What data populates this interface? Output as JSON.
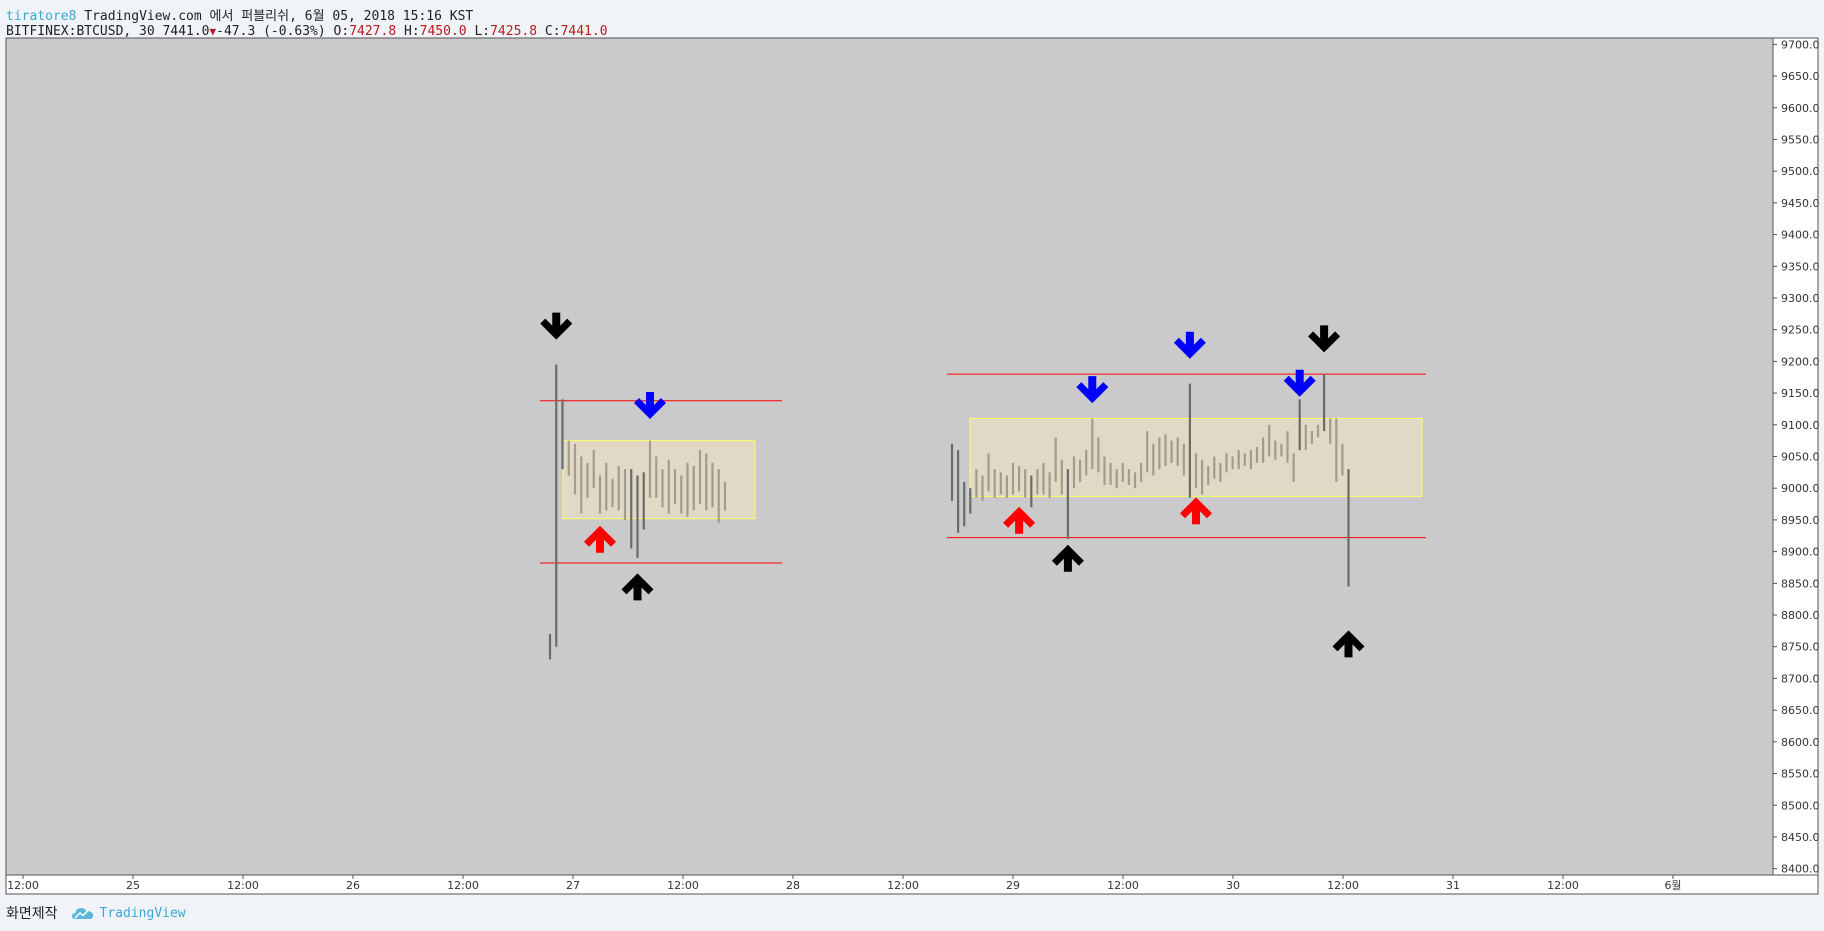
{
  "header": {
    "user": "tiratore8",
    "published": "TradingView.com 에서 퍼블리쉬, 6월 05, 2018 15:16 KST",
    "symbol": "BITFINEX:BTCUSD, 30",
    "last": "7441.0",
    "change_arrow": "▼",
    "change": "-47.3 (-0.63%)",
    "o_label": "O:",
    "o_val": "7427.8",
    "h_label": "H:",
    "h_val": "7450.0",
    "l_label": "L:",
    "l_val": "7425.8",
    "c_label": "C:",
    "c_val": "7441.0"
  },
  "footer": {
    "label": "화면제작",
    "brand": "TradingView",
    "brand_icon": "tradingview-cloud-icon"
  },
  "colors": {
    "plot_bg": "#cacaca",
    "bar_dark": "#6b6b6b",
    "bar_light": "#a49c8a",
    "zone_fill": "#e3dcc4",
    "zone_border": "#ffff66",
    "line_red": "#ff0000",
    "arrow_blue": "#0000ff",
    "arrow_red": "#ff0000",
    "arrow_black": "#000000"
  },
  "chart_data": {
    "type": "bar",
    "xlabels": [
      "12:00",
      "25",
      "12:00",
      "26",
      "12:00",
      "27",
      "12:00",
      "28",
      "12:00",
      "29",
      "12:00",
      "30",
      "12:00",
      "31",
      "12:00",
      "6월"
    ],
    "yticks": [
      "9700.0",
      "9650.0",
      "9600.0",
      "9550.0",
      "9500.0",
      "9450.0",
      "9400.0",
      "9350.0",
      "9300.0",
      "9250.0",
      "9200.0",
      "9150.0",
      "9100.0",
      "9050.0",
      "9000.0",
      "8950.0",
      "8900.0",
      "8850.0",
      "8800.0",
      "8750.0",
      "8700.0",
      "8650.0",
      "8600.0",
      "8550.0",
      "8500.0",
      "8450.0",
      "8400.0"
    ],
    "ylim": [
      8390,
      9710
    ],
    "grid": false,
    "segments": [
      {
        "hlines": [
          9138,
          8882
        ],
        "zone": [
          9075,
          8952
        ],
        "bars": [
          {
            "h": 8770,
            "l": 8730
          },
          {
            "h": 9195,
            "l": 8750
          },
          {
            "h": 9140,
            "l": 9030
          },
          {
            "h": 9075,
            "l": 9020
          },
          {
            "h": 9070,
            "l": 8990
          },
          {
            "h": 9050,
            "l": 8960
          },
          {
            "h": 9040,
            "l": 8985
          },
          {
            "h": 9060,
            "l": 9000
          },
          {
            "h": 9020,
            "l": 8960
          },
          {
            "h": 9040,
            "l": 8965
          },
          {
            "h": 9015,
            "l": 8970
          },
          {
            "h": 9035,
            "l": 8965
          },
          {
            "h": 9030,
            "l": 8950
          },
          {
            "h": 9030,
            "l": 8905
          },
          {
            "h": 9020,
            "l": 8890
          },
          {
            "h": 9025,
            "l": 8935
          },
          {
            "h": 9075,
            "l": 8985
          },
          {
            "h": 9050,
            "l": 8985
          },
          {
            "h": 9030,
            "l": 8970
          },
          {
            "h": 9045,
            "l": 8960
          },
          {
            "h": 9030,
            "l": 8975
          },
          {
            "h": 9020,
            "l": 8960
          },
          {
            "h": 9040,
            "l": 8955
          },
          {
            "h": 9035,
            "l": 8965
          },
          {
            "h": 9060,
            "l": 8975
          },
          {
            "h": 9055,
            "l": 8965
          },
          {
            "h": 9040,
            "l": 8970
          },
          {
            "h": 9030,
            "l": 8945
          },
          {
            "h": 9010,
            "l": 8965
          }
        ]
      },
      {
        "hlines": [
          9180,
          8922
        ],
        "zone": [
          9110,
          8987
        ],
        "bars": [
          {
            "h": 9070,
            "l": 8980
          },
          {
            "h": 9060,
            "l": 8930
          },
          {
            "h": 9010,
            "l": 8940
          },
          {
            "h": 9000,
            "l": 8960
          },
          {
            "h": 9030,
            "l": 8985
          },
          {
            "h": 9020,
            "l": 8980
          },
          {
            "h": 9055,
            "l": 8995
          },
          {
            "h": 9030,
            "l": 8985
          },
          {
            "h": 9025,
            "l": 8990
          },
          {
            "h": 9020,
            "l": 8985
          },
          {
            "h": 9040,
            "l": 8990
          },
          {
            "h": 9035,
            "l": 8995
          },
          {
            "h": 9030,
            "l": 8985
          },
          {
            "h": 9020,
            "l": 8970
          },
          {
            "h": 9030,
            "l": 8990
          },
          {
            "h": 9040,
            "l": 8990
          },
          {
            "h": 9025,
            "l": 8985
          },
          {
            "h": 9080,
            "l": 9010
          },
          {
            "h": 9045,
            "l": 8990
          },
          {
            "h": 9030,
            "l": 8920
          },
          {
            "h": 9050,
            "l": 9000
          },
          {
            "h": 9045,
            "l": 9010
          },
          {
            "h": 9060,
            "l": 9020
          },
          {
            "h": 9110,
            "l": 9030
          },
          {
            "h": 9080,
            "l": 9025
          },
          {
            "h": 9050,
            "l": 9005
          },
          {
            "h": 9040,
            "l": 9005
          },
          {
            "h": 9030,
            "l": 9000
          },
          {
            "h": 9040,
            "l": 9010
          },
          {
            "h": 9030,
            "l": 9005
          },
          {
            "h": 9025,
            "l": 9000
          },
          {
            "h": 9040,
            "l": 9010
          },
          {
            "h": 9090,
            "l": 9025
          },
          {
            "h": 9070,
            "l": 9020
          },
          {
            "h": 9080,
            "l": 9030
          },
          {
            "h": 9085,
            "l": 9035
          },
          {
            "h": 9075,
            "l": 9040
          },
          {
            "h": 9080,
            "l": 9035
          },
          {
            "h": 9070,
            "l": 9020
          },
          {
            "h": 9165,
            "l": 8985
          },
          {
            "h": 9055,
            "l": 9000
          },
          {
            "h": 9045,
            "l": 8990
          },
          {
            "h": 9035,
            "l": 9005
          },
          {
            "h": 9050,
            "l": 9015
          },
          {
            "h": 9040,
            "l": 9010
          },
          {
            "h": 9055,
            "l": 9025
          },
          {
            "h": 9050,
            "l": 9030
          },
          {
            "h": 9060,
            "l": 9030
          },
          {
            "h": 9055,
            "l": 9035
          },
          {
            "h": 9060,
            "l": 9030
          },
          {
            "h": 9065,
            "l": 9040
          },
          {
            "h": 9080,
            "l": 9040
          },
          {
            "h": 9100,
            "l": 9050
          },
          {
            "h": 9075,
            "l": 9045
          },
          {
            "h": 9070,
            "l": 9050
          },
          {
            "h": 9090,
            "l": 9040
          },
          {
            "h": 9055,
            "l": 9010
          },
          {
            "h": 9140,
            "l": 9060
          },
          {
            "h": 9100,
            "l": 9060
          },
          {
            "h": 9090,
            "l": 9070
          },
          {
            "h": 9100,
            "l": 9080
          },
          {
            "h": 9180,
            "l": 9090
          },
          {
            "h": 9110,
            "l": 9070
          },
          {
            "h": 9110,
            "l": 9010
          },
          {
            "h": 9070,
            "l": 9020
          },
          {
            "h": 9030,
            "l": 8845
          }
        ]
      }
    ],
    "arrows": [
      {
        "dir": "down",
        "color": "black",
        "price": 9250,
        "bar": [
          0,
          1
        ]
      },
      {
        "dir": "down",
        "color": "blue",
        "price": 9125,
        "bar": [
          0,
          16
        ]
      },
      {
        "dir": "up",
        "color": "red",
        "price": 8925,
        "bar": [
          0,
          8
        ]
      },
      {
        "dir": "up",
        "color": "black",
        "price": 8850,
        "bar": [
          0,
          14
        ]
      },
      {
        "dir": "up",
        "color": "red",
        "price": 8955,
        "bar": [
          1,
          11
        ]
      },
      {
        "dir": "up",
        "color": "black",
        "price": 8895,
        "bar": [
          1,
          19
        ]
      },
      {
        "dir": "down",
        "color": "blue",
        "price": 9150,
        "bar": [
          1,
          23
        ]
      },
      {
        "dir": "down",
        "color": "blue",
        "price": 9220,
        "bar": [
          1,
          39
        ]
      },
      {
        "dir": "up",
        "color": "red",
        "price": 8970,
        "bar": [
          1,
          40
        ]
      },
      {
        "dir": "down",
        "color": "blue",
        "price": 9160,
        "bar": [
          1,
          57
        ]
      },
      {
        "dir": "down",
        "color": "black",
        "price": 9230,
        "bar": [
          1,
          61
        ]
      },
      {
        "dir": "up",
        "color": "black",
        "price": 8760,
        "bar": [
          1,
          65
        ]
      }
    ]
  }
}
